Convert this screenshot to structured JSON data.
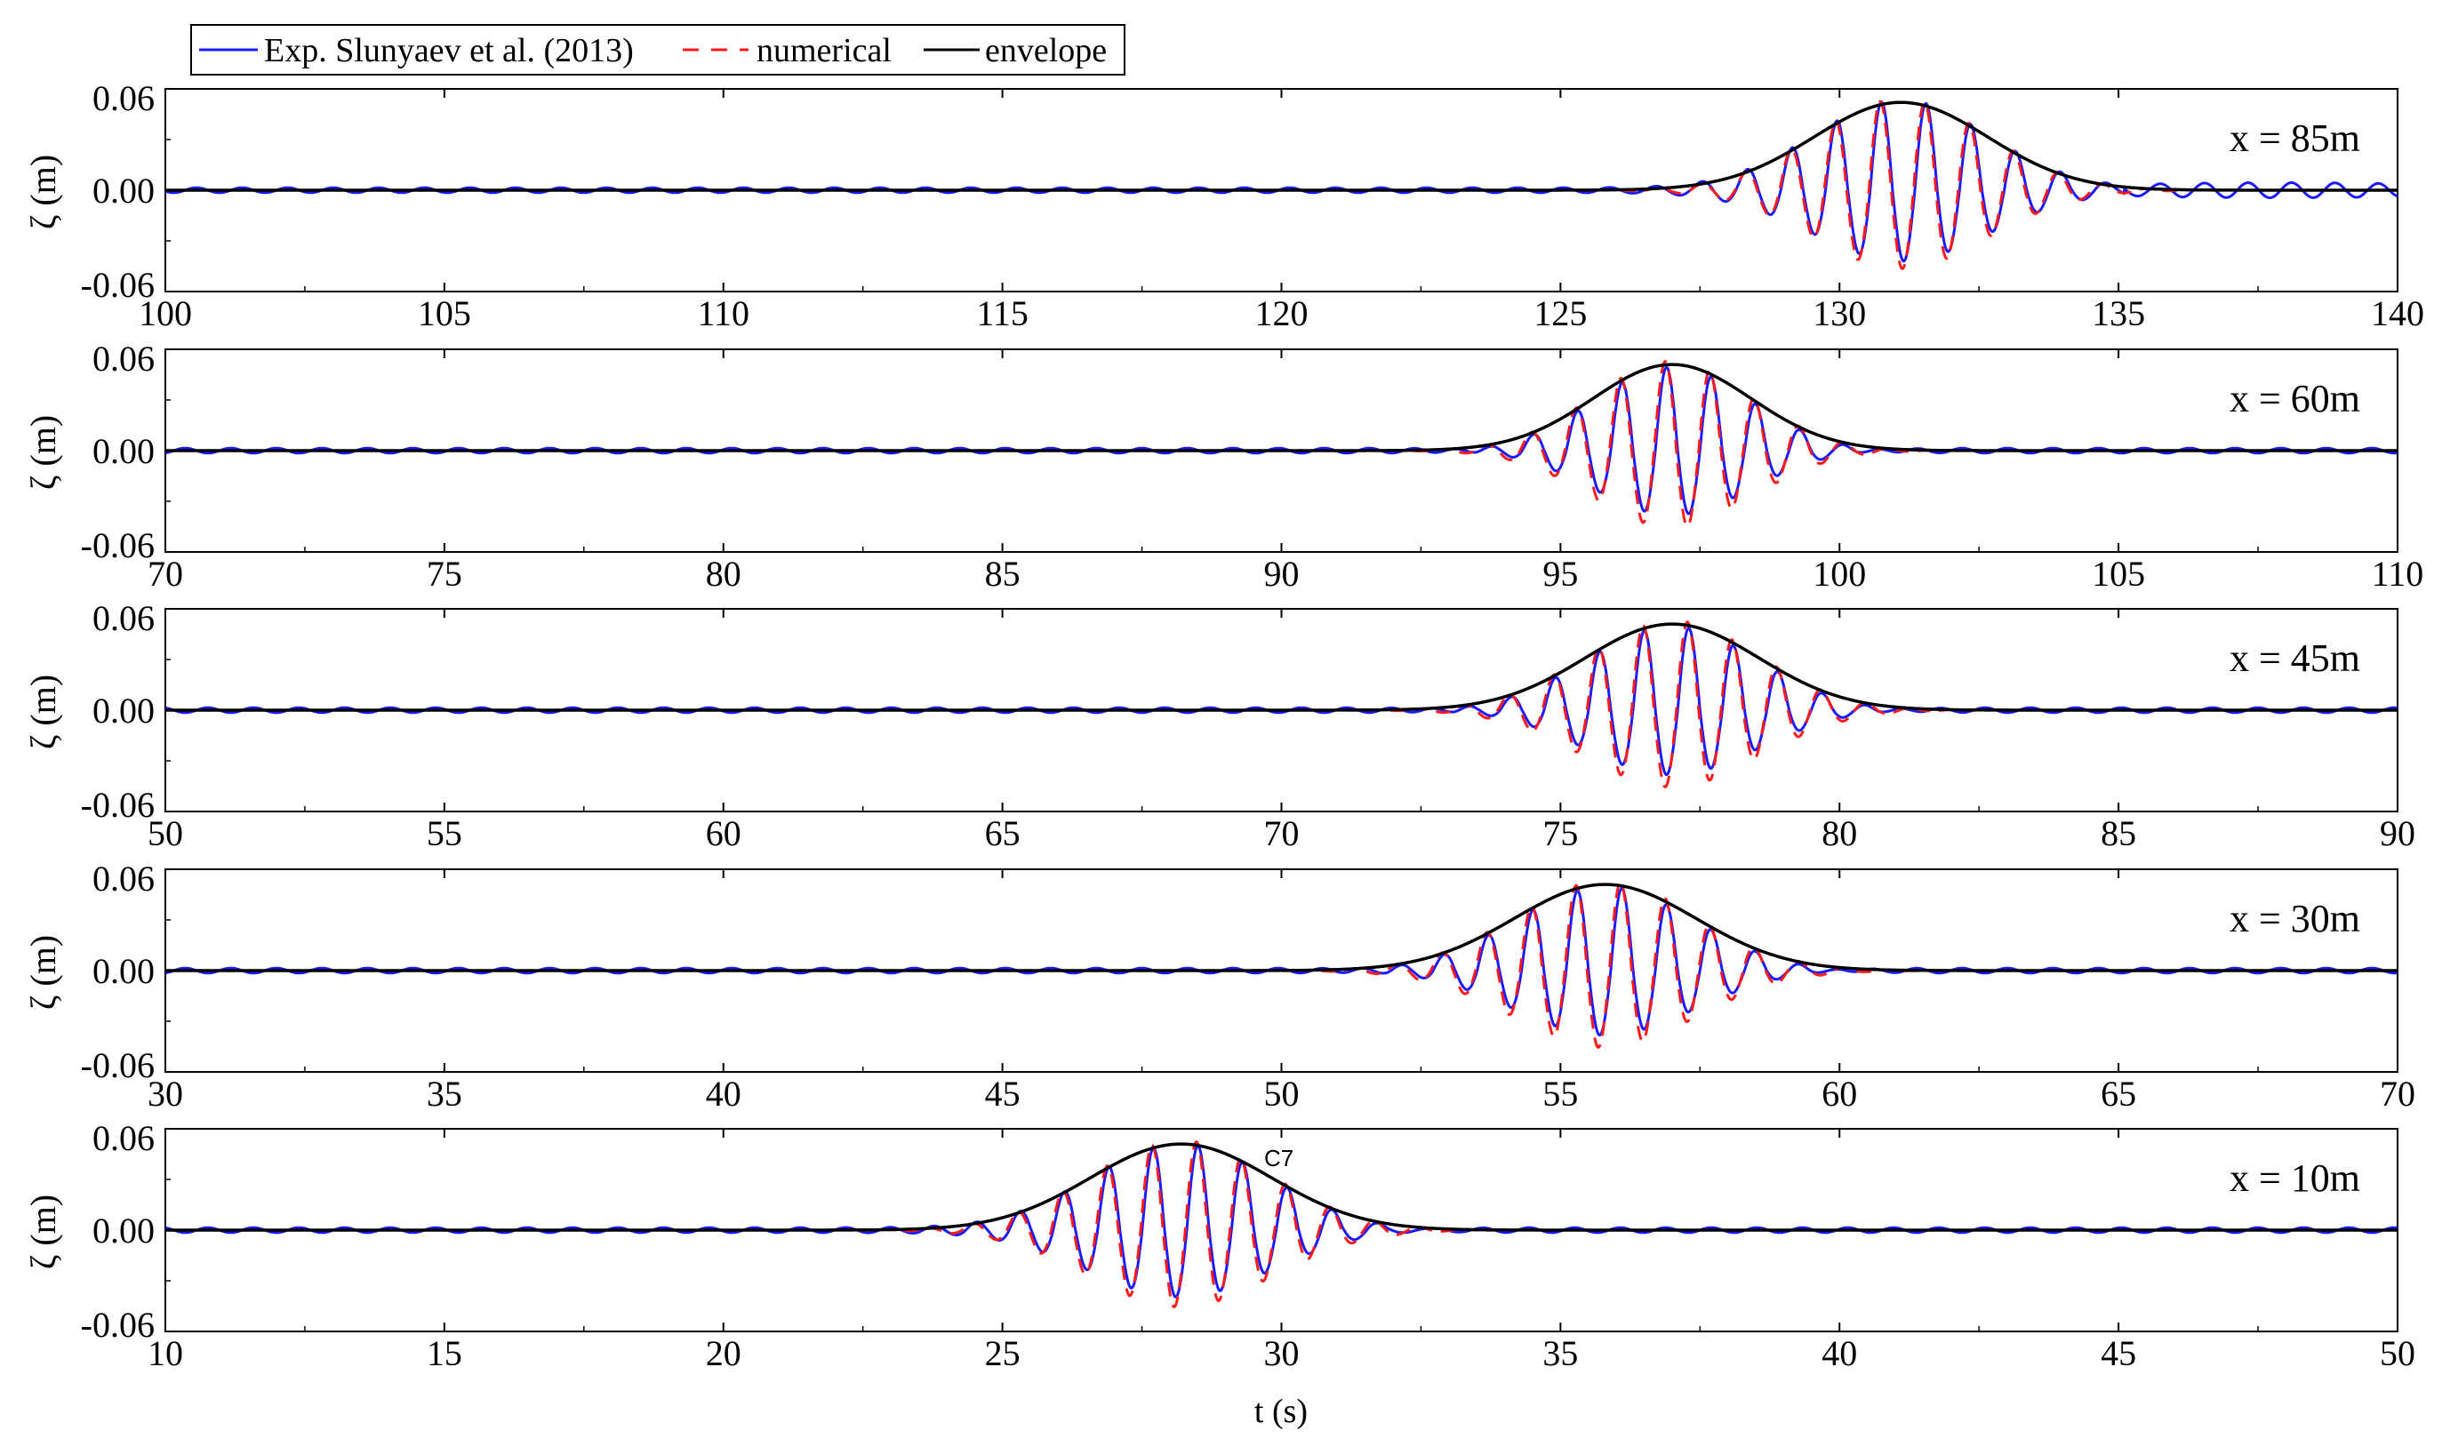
{
  "legend": {
    "items": [
      {
        "label": "Exp. Slunyaev et al. (2013)",
        "color": "#1a1aff",
        "style": "solid"
      },
      {
        "label": "numerical",
        "color": "#ff1a1a",
        "style": "dashed"
      },
      {
        "label": "envelope",
        "color": "#000000",
        "style": "solid"
      }
    ]
  },
  "xlabel": "t (s)",
  "annotation": "C7",
  "chart_data": [
    {
      "type": "line",
      "panel_label": "x = 85m",
      "ylabel": "ζ (m)",
      "xlim": [
        100,
        140
      ],
      "ylim": [
        -0.06,
        0.06
      ],
      "xticks": [
        100,
        105,
        110,
        115,
        120,
        125,
        130,
        135,
        140
      ],
      "yticks": [
        "0.06",
        "0.00",
        "-0.06"
      ],
      "envelope": {
        "peak_t": 131.1,
        "peak_amp": 0.052,
        "width_s": 2.2
      },
      "wave": {
        "period_s": 0.8,
        "phase_t": 130.75,
        "trough_scale": 0.78
      },
      "background_ripple": 0.0015,
      "end_noise": 0.003
    },
    {
      "type": "line",
      "panel_label": "x = 60m",
      "ylabel": "ζ (m)",
      "xlim": [
        70,
        110
      ],
      "ylim": [
        -0.06,
        0.06
      ],
      "xticks": [
        70,
        75,
        80,
        85,
        90,
        95,
        100,
        105,
        110
      ],
      "yticks": [
        "0.06",
        "0.00",
        "-0.06"
      ],
      "envelope": {
        "peak_t": 97.0,
        "peak_amp": 0.051,
        "width_s": 2.0
      },
      "wave": {
        "period_s": 0.8,
        "phase_t": 96.9,
        "trough_scale": 0.78
      },
      "background_ripple": 0.0015,
      "end_noise": 0.0
    },
    {
      "type": "line",
      "panel_label": "x = 45m",
      "ylabel": "ζ (m)",
      "xlim": [
        50,
        90
      ],
      "ylim": [
        -0.06,
        0.06
      ],
      "xticks": [
        50,
        55,
        60,
        65,
        70,
        75,
        80,
        85,
        90
      ],
      "yticks": [
        "0.06",
        "0.00",
        "-0.06"
      ],
      "envelope": {
        "peak_t": 77.0,
        "peak_amp": 0.051,
        "width_s": 2.2
      },
      "wave": {
        "period_s": 0.8,
        "phase_t": 76.5,
        "trough_scale": 0.78
      },
      "background_ripple": 0.0015,
      "end_noise": 0.0
    },
    {
      "type": "line",
      "panel_label": "x = 30m",
      "ylabel": "ζ (m)",
      "xlim": [
        30,
        70
      ],
      "ylim": [
        -0.06,
        0.06
      ],
      "xticks": [
        30,
        35,
        40,
        45,
        50,
        55,
        60,
        65,
        70
      ],
      "yticks": [
        "0.06",
        "0.00",
        "-0.06"
      ],
      "envelope": {
        "peak_t": 55.8,
        "peak_amp": 0.051,
        "width_s": 2.3
      },
      "wave": {
        "period_s": 0.8,
        "phase_t": 56.1,
        "trough_scale": 0.78
      },
      "background_ripple": 0.0015,
      "end_noise": 0.0
    },
    {
      "type": "line",
      "panel_label": "x = 10m",
      "ylabel": "ζ (m)",
      "xlim": [
        10,
        50
      ],
      "ylim": [
        -0.06,
        0.06
      ],
      "xticks": [
        10,
        15,
        20,
        25,
        30,
        35,
        40,
        45,
        50
      ],
      "yticks": [
        "0.06",
        "0.00",
        "-0.06"
      ],
      "envelope": {
        "peak_t": 28.2,
        "peak_amp": 0.051,
        "width_s": 2.3
      },
      "wave": {
        "period_s": 0.8,
        "phase_t": 28.5,
        "trough_scale": 0.78
      },
      "background_ripple": 0.0015,
      "end_noise": 0.0
    }
  ]
}
